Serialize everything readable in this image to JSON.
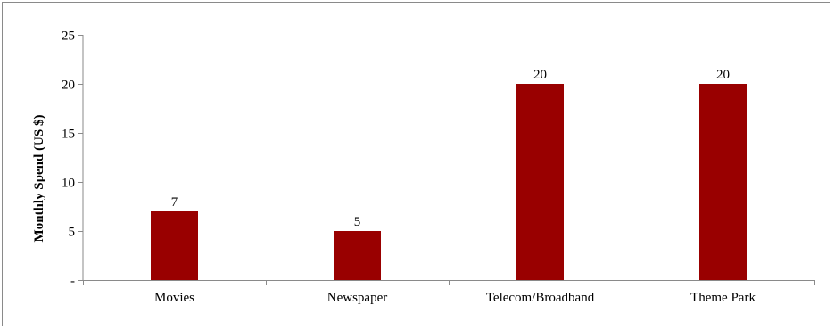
{
  "chart_data": {
    "type": "bar",
    "categories": [
      "Movies",
      "Newspaper",
      "Telecom/Broadband",
      "Theme Park"
    ],
    "values": [
      7,
      5,
      20,
      20
    ],
    "data_labels": [
      "7",
      "5",
      "20",
      "20"
    ],
    "title": "",
    "xlabel": "",
    "ylabel": "Monthly Spend (US $)",
    "ylim": [
      0,
      25
    ],
    "y_ticks": [
      0,
      5,
      10,
      15,
      20,
      25
    ],
    "y_tick_labels": [
      "-",
      "5",
      "10",
      "15",
      "20",
      "25"
    ],
    "grid": false,
    "legend": "none",
    "bar_color": "#990000"
  }
}
